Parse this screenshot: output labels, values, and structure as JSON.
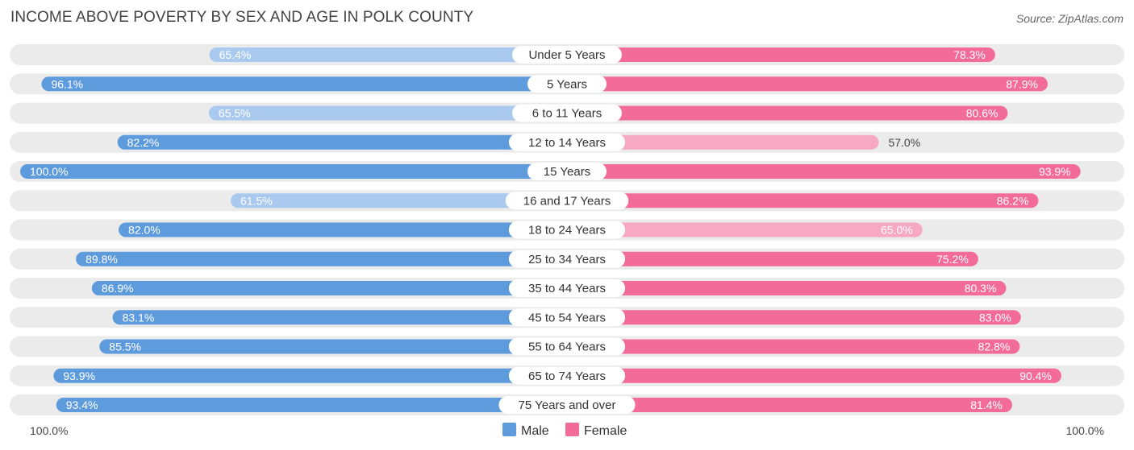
{
  "title": "INCOME ABOVE POVERTY BY SEX AND AGE IN POLK COUNTY",
  "source": "Source: ZipAtlas.com",
  "colors": {
    "male_strong": "#5e9bdc",
    "male_light": "#a9caee",
    "female_strong": "#f36b98",
    "female_light": "#f7a9c3",
    "track": "#ebebeb"
  },
  "chart_data": {
    "type": "bar",
    "orientation": "horizontal-diverging",
    "categories": [
      "Under 5 Years",
      "5 Years",
      "6 to 11 Years",
      "12 to 14 Years",
      "15 Years",
      "16 and 17 Years",
      "18 to 24 Years",
      "25 to 34 Years",
      "35 to 44 Years",
      "45 to 54 Years",
      "55 to 64 Years",
      "65 to 74 Years",
      "75 Years and over"
    ],
    "series": [
      {
        "name": "Male",
        "values": [
          65.4,
          96.1,
          65.5,
          82.2,
          100.0,
          61.5,
          82.0,
          89.8,
          86.9,
          83.1,
          85.5,
          93.9,
          93.4
        ]
      },
      {
        "name": "Female",
        "values": [
          78.3,
          87.9,
          80.6,
          57.0,
          93.9,
          86.2,
          65.0,
          75.2,
          80.3,
          83.0,
          82.8,
          90.4,
          81.4
        ]
      }
    ],
    "value_labels": {
      "male": [
        "65.4%",
        "96.1%",
        "65.5%",
        "82.2%",
        "100.0%",
        "61.5%",
        "82.0%",
        "89.8%",
        "86.9%",
        "83.1%",
        "85.5%",
        "93.9%",
        "93.4%"
      ],
      "female": [
        "78.3%",
        "87.9%",
        "80.6%",
        "57.0%",
        "93.9%",
        "86.2%",
        "65.0%",
        "75.2%",
        "80.3%",
        "83.0%",
        "82.8%",
        "90.4%",
        "81.4%"
      ]
    },
    "xlim": [
      0,
      100
    ],
    "axis_left_label": "100.0%",
    "axis_right_label": "100.0%",
    "legend": {
      "position": "bottom-center",
      "items": [
        "Male",
        "Female"
      ]
    }
  }
}
